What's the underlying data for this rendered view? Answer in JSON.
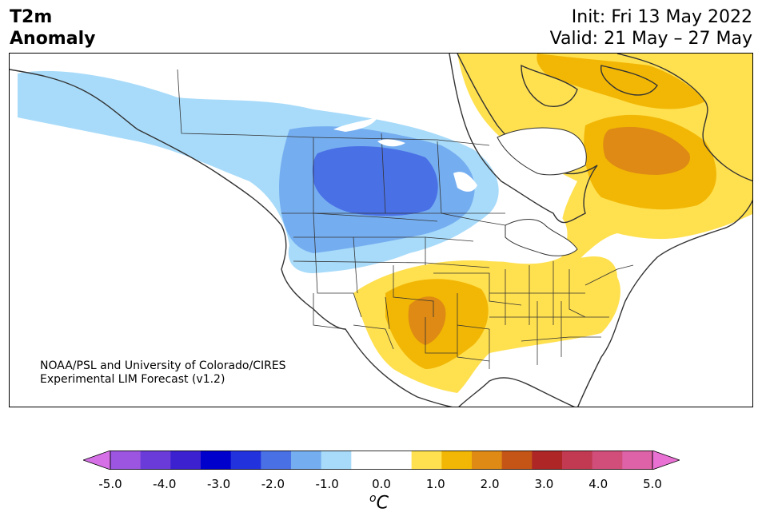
{
  "title": {
    "left_line1": "T2m",
    "left_line2": "Anomaly",
    "init": "Init: Fri 13 May 2022",
    "valid": "Valid: 21 May – 27 May"
  },
  "credit": {
    "line1": "NOAA/PSL and University of Colorado/CIRES",
    "line2": "Experimental LIM Forecast (v1.2)"
  },
  "colorbar": {
    "colors": [
      "#d670e6",
      "#9b55e0",
      "#6a3bd9",
      "#3b21cf",
      "#0000cc",
      "#2233dd",
      "#4a70e6",
      "#75aef0",
      "#a8dbfa",
      "#ffffff",
      "#ffffff",
      "#ffe04f",
      "#f2b705",
      "#de8a14",
      "#c55516",
      "#ae2626",
      "#c23a52",
      "#d14e7a",
      "#de62a8",
      "#e871d3"
    ],
    "ticks": [
      "-5.0",
      "-4.0",
      "-3.0",
      "-2.0",
      "-1.0",
      "0.0",
      "1.0",
      "2.0",
      "3.0",
      "4.0",
      "5.0"
    ],
    "unit_base": "C",
    "unit_sup": "o"
  }
}
